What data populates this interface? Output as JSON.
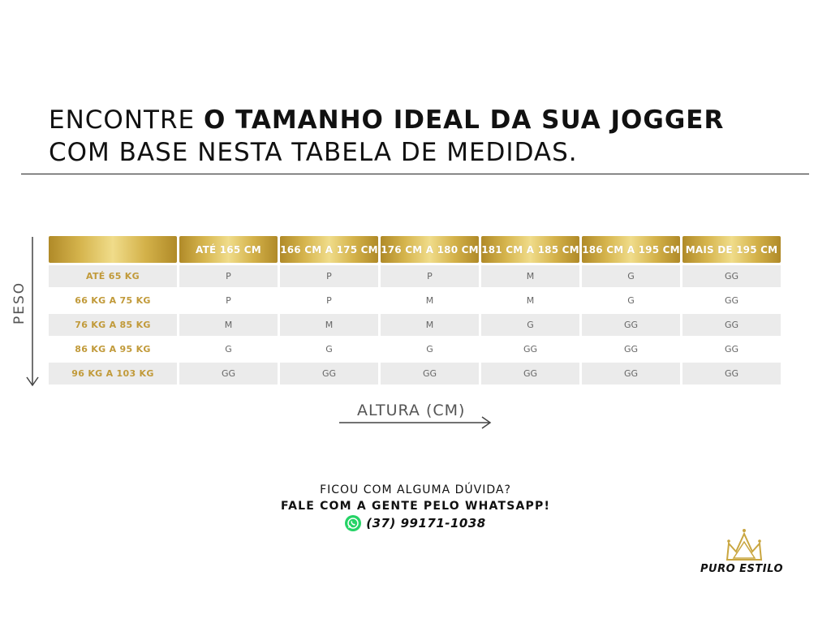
{
  "headline": {
    "line1_prefix": "ENCONTRE ",
    "line1_bold": "O TAMANHO IDEAL DA SUA JOGGER",
    "line2": "COM BASE NESTA TABELA DE MEDIDAS."
  },
  "axes": {
    "y_label": "PESO",
    "x_label": "ALTURA (CM)"
  },
  "table": {
    "columns": [
      "ATÉ 165 CM",
      "166 CM A 175 CM",
      "176 CM A 180 CM",
      "181 CM A 185 CM",
      "186 CM A 195 CM",
      "MAIS DE 195 CM"
    ],
    "rows": [
      {
        "label": "ATÉ 65 KG",
        "cells": [
          "P",
          "P",
          "P",
          "M",
          "G",
          "GG"
        ]
      },
      {
        "label": "66 KG A 75 KG",
        "cells": [
          "P",
          "P",
          "M",
          "M",
          "G",
          "GG"
        ]
      },
      {
        "label": "76 KG A 85 KG",
        "cells": [
          "M",
          "M",
          "M",
          "G",
          "GG",
          "GG"
        ]
      },
      {
        "label": "86 KG A 95 KG",
        "cells": [
          "G",
          "G",
          "G",
          "GG",
          "GG",
          "GG"
        ]
      },
      {
        "label": "96 KG A 103 KG",
        "cells": [
          "GG",
          "GG",
          "GG",
          "GG",
          "GG",
          "GG"
        ]
      }
    ]
  },
  "contact": {
    "question": "FICOU COM ALGUMA DÚVIDA?",
    "cta": "FALE COM A GENTE PELO WHATSAPP!",
    "phone": "(37) 99171-1038",
    "icon": "whatsapp-icon"
  },
  "brand": {
    "name": "PURO ESTILO",
    "icon": "crown-icon"
  },
  "colors": {
    "gold": "#c9a640",
    "gold_text": "#c19a3a",
    "shade": "#ebebeb",
    "whatsapp": "#25d366"
  }
}
